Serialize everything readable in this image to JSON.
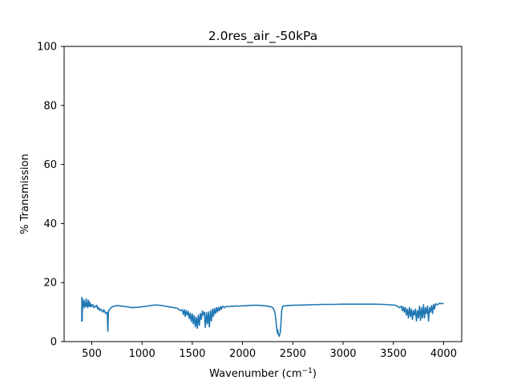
{
  "chart_data": {
    "type": "line",
    "title": "2.0res_air_-50kPa",
    "xlabel": "Wavenumber (cm",
    "xlabel_sup": "−1",
    "xlabel_tail": ")",
    "ylabel": "% Transmission",
    "xlim": [
      225,
      4180
    ],
    "ylim": [
      0,
      100
    ],
    "xticks": [
      500,
      1000,
      1500,
      2000,
      2500,
      3000,
      3500,
      4000
    ],
    "xtick_labels": [
      "500",
      "1000",
      "1500",
      "2000",
      "2500",
      "3000",
      "3500",
      "4000"
    ],
    "yticks": [
      0,
      20,
      40,
      60,
      80,
      100
    ],
    "ytick_labels": [
      "0",
      "20",
      "40",
      "60",
      "80",
      "100"
    ],
    "grid": false,
    "series": [
      {
        "color": "#1f77b4",
        "x": [
          400,
          402,
          405,
          408,
          410,
          415,
          420,
          425,
          430,
          435,
          440,
          445,
          450,
          455,
          460,
          465,
          470,
          475,
          480,
          485,
          490,
          495,
          500,
          510,
          520,
          530,
          540,
          550,
          560,
          570,
          580,
          590,
          600,
          610,
          620,
          630,
          640,
          650,
          655,
          660,
          665,
          668,
          672,
          680,
          700,
          750,
          800,
          850,
          900,
          950,
          1000,
          1050,
          1100,
          1150,
          1200,
          1250,
          1300,
          1350,
          1380,
          1400,
          1410,
          1420,
          1430,
          1440,
          1450,
          1460,
          1470,
          1480,
          1490,
          1500,
          1510,
          1520,
          1530,
          1540,
          1550,
          1560,
          1570,
          1580,
          1590,
          1600,
          1610,
          1620,
          1630,
          1640,
          1650,
          1660,
          1670,
          1680,
          1690,
          1700,
          1710,
          1720,
          1730,
          1740,
          1750,
          1760,
          1770,
          1780,
          1790,
          1800,
          1820,
          1840,
          1860,
          1880,
          1900,
          1930,
          1960,
          2000,
          2050,
          2100,
          2150,
          2200,
          2250,
          2280,
          2300,
          2310,
          2320,
          2330,
          2335,
          2340,
          2345,
          2350,
          2355,
          2360,
          2365,
          2370,
          2375,
          2380,
          2385,
          2390,
          2400,
          2450,
          2500,
          2600,
          2700,
          2800,
          2900,
          3000,
          3100,
          3200,
          3300,
          3400,
          3450,
          3500,
          3520,
          3540,
          3560,
          3580,
          3590,
          3600,
          3610,
          3620,
          3630,
          3640,
          3650,
          3660,
          3670,
          3680,
          3690,
          3700,
          3710,
          3720,
          3730,
          3740,
          3750,
          3760,
          3770,
          3780,
          3790,
          3800,
          3810,
          3820,
          3830,
          3840,
          3850,
          3860,
          3870,
          3880,
          3890,
          3900,
          3910,
          3920,
          3940,
          3960,
          3980,
          4000
        ],
        "y": [
          6.8,
          15,
          7,
          14.5,
          11,
          13.5,
          12,
          14,
          11.5,
          13,
          12,
          14.5,
          12,
          13,
          11.5,
          14,
          12,
          13.5,
          12,
          13,
          11.8,
          12.5,
          12,
          12.5,
          11.5,
          12,
          11.8,
          12.3,
          11,
          11.5,
          10.5,
          11,
          10.5,
          10,
          10.8,
          10,
          9.5,
          10,
          9,
          3.5,
          9.5,
          10.5,
          10.5,
          11,
          11.8,
          12.2,
          12,
          11.8,
          11.5,
          11.6,
          11.8,
          12,
          12.3,
          12.4,
          12.2,
          11.9,
          11.6,
          11.3,
          10.5,
          10.8,
          9.2,
          10.8,
          8.5,
          10.6,
          9,
          10.2,
          7.8,
          9.6,
          6.8,
          9.4,
          6,
          8.8,
          5,
          8.2,
          4.5,
          9,
          5.5,
          9.5,
          7.5,
          10.4,
          9,
          10,
          4.8,
          9.8,
          6,
          10,
          5,
          10.5,
          7,
          11,
          8.5,
          11.2,
          9.5,
          11.5,
          10,
          11.6,
          10.5,
          11.8,
          11,
          12,
          11.5,
          12,
          11.8,
          12,
          11.9,
          12.1,
          12,
          12.1,
          12.2,
          12.3,
          12.3,
          12.2,
          12,
          11.8,
          11.5,
          11,
          10,
          8,
          6,
          4.5,
          3,
          4,
          2.5,
          2.2,
          1.8,
          2.5,
          3,
          5,
          8,
          10.5,
          12,
          12.2,
          12.3,
          12.4,
          12.5,
          12.6,
          12.6,
          12.7,
          12.7,
          12.7,
          12.7,
          12.6,
          12.5,
          12.4,
          12.3,
          12,
          11.5,
          12,
          10.5,
          11.8,
          10,
          11.5,
          9,
          11,
          8,
          11.5,
          8.5,
          11,
          7.5,
          10.5,
          9,
          11,
          7,
          10.5,
          8,
          12,
          7.2,
          11.5,
          8,
          12.5,
          8,
          11.5,
          9.5,
          12,
          7,
          11.5,
          10,
          12.2,
          9.5,
          12.6,
          11,
          12.8,
          12.5,
          13,
          12.8,
          13
        ]
      }
    ]
  }
}
